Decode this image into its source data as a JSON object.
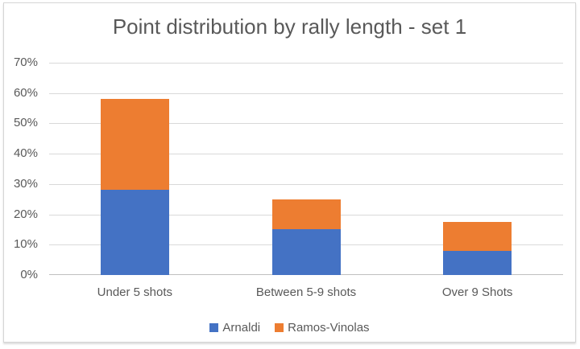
{
  "chart_data": {
    "type": "bar",
    "stacked": true,
    "title": "Point distribution by rally length - set 1",
    "categories": [
      "Under 5 shots",
      "Between 5-9 shots",
      "Over 9 Shots"
    ],
    "series": [
      {
        "name": "Arnaldi",
        "color": "#4472C4",
        "values": [
          28,
          15,
          8
        ]
      },
      {
        "name": "Ramos-Vinolas",
        "color": "#ED7D31",
        "values": [
          30,
          10,
          9.5
        ]
      }
    ],
    "xlabel": "",
    "ylabel": "",
    "ylim": [
      0,
      70
    ],
    "ytick_step": 10,
    "ytick_labels": [
      "0%",
      "10%",
      "20%",
      "30%",
      "40%",
      "50%",
      "60%",
      "70%"
    ],
    "grid": true,
    "legend_position": "bottom"
  },
  "colors": {
    "text": "#595959",
    "gridline": "#D9D9D9",
    "axis_line": "#BFBFBF",
    "frame_border": "#D5D5D5",
    "background": "#FFFFFF"
  }
}
